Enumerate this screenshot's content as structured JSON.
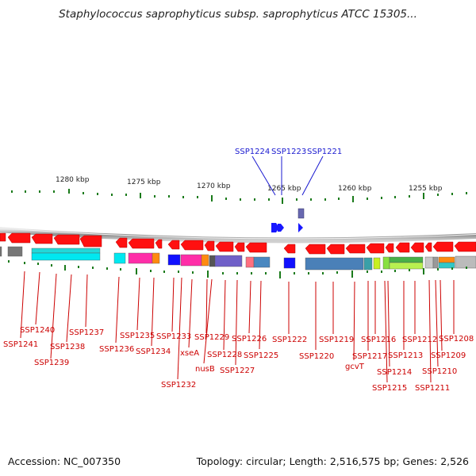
{
  "title": "Staphylococcus saprophyticus subsp. saprophyticus ATCC 15305...",
  "footer": {
    "accession": "Accession: NC_007350",
    "info": "Topology: circular; Length: 2,516,575 bp; Genes: 2,526"
  },
  "scale": {
    "labels": [
      "1280 kbp",
      "1275 kbp",
      "1270 kbp",
      "1265 kbp",
      "1260 kbp",
      "1255 kbp"
    ]
  },
  "top_genes": [
    "SSP1224",
    "SSP1223",
    "SSP1221"
  ],
  "gene_labels": [
    "SSP1241",
    "SSP1240",
    "SSP1239",
    "SSP1238",
    "SSP1237",
    "SSP1236",
    "SSP1235",
    "SSP1234",
    "SSP1233",
    "SSP1232",
    "xseA",
    "SSP1229",
    "nusB",
    "SSP1228",
    "SSP1227",
    "SSP1226",
    "SSP1225",
    "SSP1222",
    "SSP1220",
    "SSP1219",
    "gcvT",
    "SSP1217",
    "SSP1216",
    "SSP1215",
    "SSP1214",
    "SSP1213",
    "SSP1212",
    "SSP1211",
    "SSP1210",
    "SSP1209",
    "SSP1208"
  ],
  "colors": {
    "gene_red": "#ff1010",
    "gene_blue": "#1818ff",
    "label_red": "#cc0000",
    "label_blue": "#0000cc",
    "tick_green": "#229922"
  }
}
